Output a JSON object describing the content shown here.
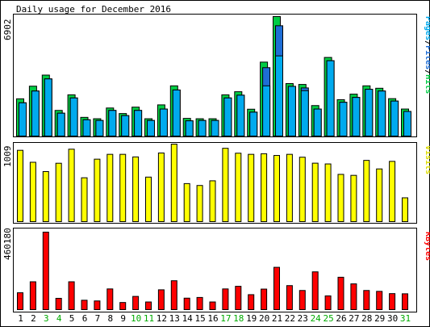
{
  "title": "Daily usage for December 2016",
  "colors": {
    "background": "#ffffff",
    "frame": "#000000",
    "hits": "#00cc44",
    "files": "#1e6ed6",
    "pages": "#00aaee",
    "visits": "#ffff00",
    "kbytes": "#ff0000",
    "weekend_label": "#00aa00",
    "weekday_label": "#000000"
  },
  "chart_data": [
    {
      "type": "bar",
      "categories": [
        "1",
        "2",
        "3",
        "4",
        "5",
        "6",
        "7",
        "8",
        "9",
        "10",
        "11",
        "12",
        "13",
        "14",
        "15",
        "16",
        "17",
        "18",
        "19",
        "20",
        "21",
        "22",
        "23",
        "24",
        "25",
        "26",
        "27",
        "28",
        "29",
        "30",
        "31"
      ],
      "weekend_days": [
        "3",
        "4",
        "10",
        "11",
        "17",
        "18",
        "24",
        "25",
        "31"
      ],
      "series": [
        {
          "name": "Hits",
          "values": [
            2150,
            2880,
            3520,
            1480,
            2380,
            1080,
            1000,
            1620,
            1300,
            1670,
            1000,
            1800,
            2900,
            1020,
            1000,
            1000,
            2380,
            2560,
            1550,
            4270,
            6900,
            3030,
            2980,
            1760,
            4540,
            2100,
            2420,
            2900,
            2760,
            2160,
            1560
          ]
        },
        {
          "name": "Files",
          "values": [
            1920,
            2600,
            3300,
            1320,
            2200,
            940,
            900,
            1480,
            1180,
            1480,
            900,
            1560,
            2660,
            880,
            900,
            900,
            2200,
            2360,
            1380,
            3950,
            6370,
            2870,
            2780,
            1560,
            4350,
            1950,
            2230,
            2700,
            2600,
            2020,
            1420
          ]
        },
        {
          "name": "Pages",
          "values": [
            1920,
            2600,
            3300,
            1320,
            2200,
            940,
            900,
            1480,
            1180,
            1480,
            900,
            1560,
            2660,
            880,
            900,
            900,
            2200,
            2360,
            1380,
            2900,
            4630,
            2870,
            2620,
            1560,
            4350,
            1950,
            2230,
            2700,
            2600,
            2020,
            1420
          ]
        }
      ],
      "ymax_label": "6902",
      "ylabel_parts": [
        "Pages",
        "/",
        "Files",
        "/",
        "Hits"
      ]
    },
    {
      "type": "bar",
      "categories": [
        "1",
        "2",
        "3",
        "4",
        "5",
        "6",
        "7",
        "8",
        "9",
        "10",
        "11",
        "12",
        "13",
        "14",
        "15",
        "16",
        "17",
        "18",
        "19",
        "20",
        "21",
        "22",
        "23",
        "24",
        "25",
        "26",
        "27",
        "28",
        "29",
        "30",
        "31"
      ],
      "series": [
        {
          "name": "Visits",
          "values": [
            943,
            785,
            662,
            772,
            958,
            580,
            826,
            890,
            890,
            856,
            589,
            908,
            1025,
            503,
            478,
            540,
            970,
            905,
            890,
            898,
            875,
            890,
            852,
            773,
            763,
            625,
            612,
            810,
            697,
            797,
            315
          ]
        }
      ],
      "ymax_label": "1009",
      "ylabel": "Visits"
    },
    {
      "type": "bar",
      "categories": [
        "1",
        "2",
        "3",
        "4",
        "5",
        "6",
        "7",
        "8",
        "9",
        "10",
        "11",
        "12",
        "13",
        "14",
        "15",
        "16",
        "17",
        "18",
        "19",
        "20",
        "21",
        "22",
        "23",
        "24",
        "25",
        "26",
        "27",
        "28",
        "29",
        "30",
        "31"
      ],
      "series": [
        {
          "name": "KBytes",
          "values": [
            97000,
            160000,
            445000,
            65000,
            160000,
            54000,
            50000,
            119000,
            41000,
            76000,
            44000,
            114000,
            166000,
            66000,
            70000,
            44000,
            119000,
            134000,
            86000,
            118000,
            243000,
            138000,
            110000,
            217000,
            79000,
            186000,
            148000,
            110000,
            105000,
            92000,
            91000
          ]
        }
      ],
      "ymax_label": "460180",
      "ylabel": "KBytes"
    }
  ]
}
